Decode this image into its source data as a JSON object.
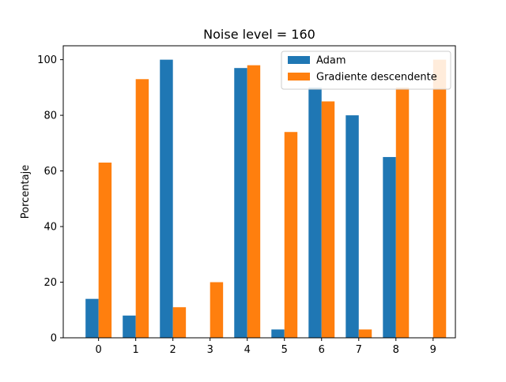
{
  "chart_data": {
    "type": "bar",
    "title": "Noise level = 160",
    "xlabel": "",
    "ylabel": "Porcentaje",
    "categories": [
      "0",
      "1",
      "2",
      "3",
      "4",
      "5",
      "6",
      "7",
      "8",
      "9"
    ],
    "series": [
      {
        "name": "Adam",
        "color": "#1f77b4",
        "values": [
          14,
          8,
          100,
          0,
          97,
          3,
          90,
          80,
          65,
          0
        ]
      },
      {
        "name": "Gradiente descendente",
        "color": "#ff7f0e",
        "values": [
          63,
          93,
          11,
          20,
          98,
          74,
          85,
          3,
          90,
          100
        ]
      }
    ],
    "ylim": [
      0,
      105
    ],
    "yticks": [
      0,
      20,
      40,
      60,
      80,
      100
    ],
    "grid": false,
    "legend_position": "top-right"
  }
}
